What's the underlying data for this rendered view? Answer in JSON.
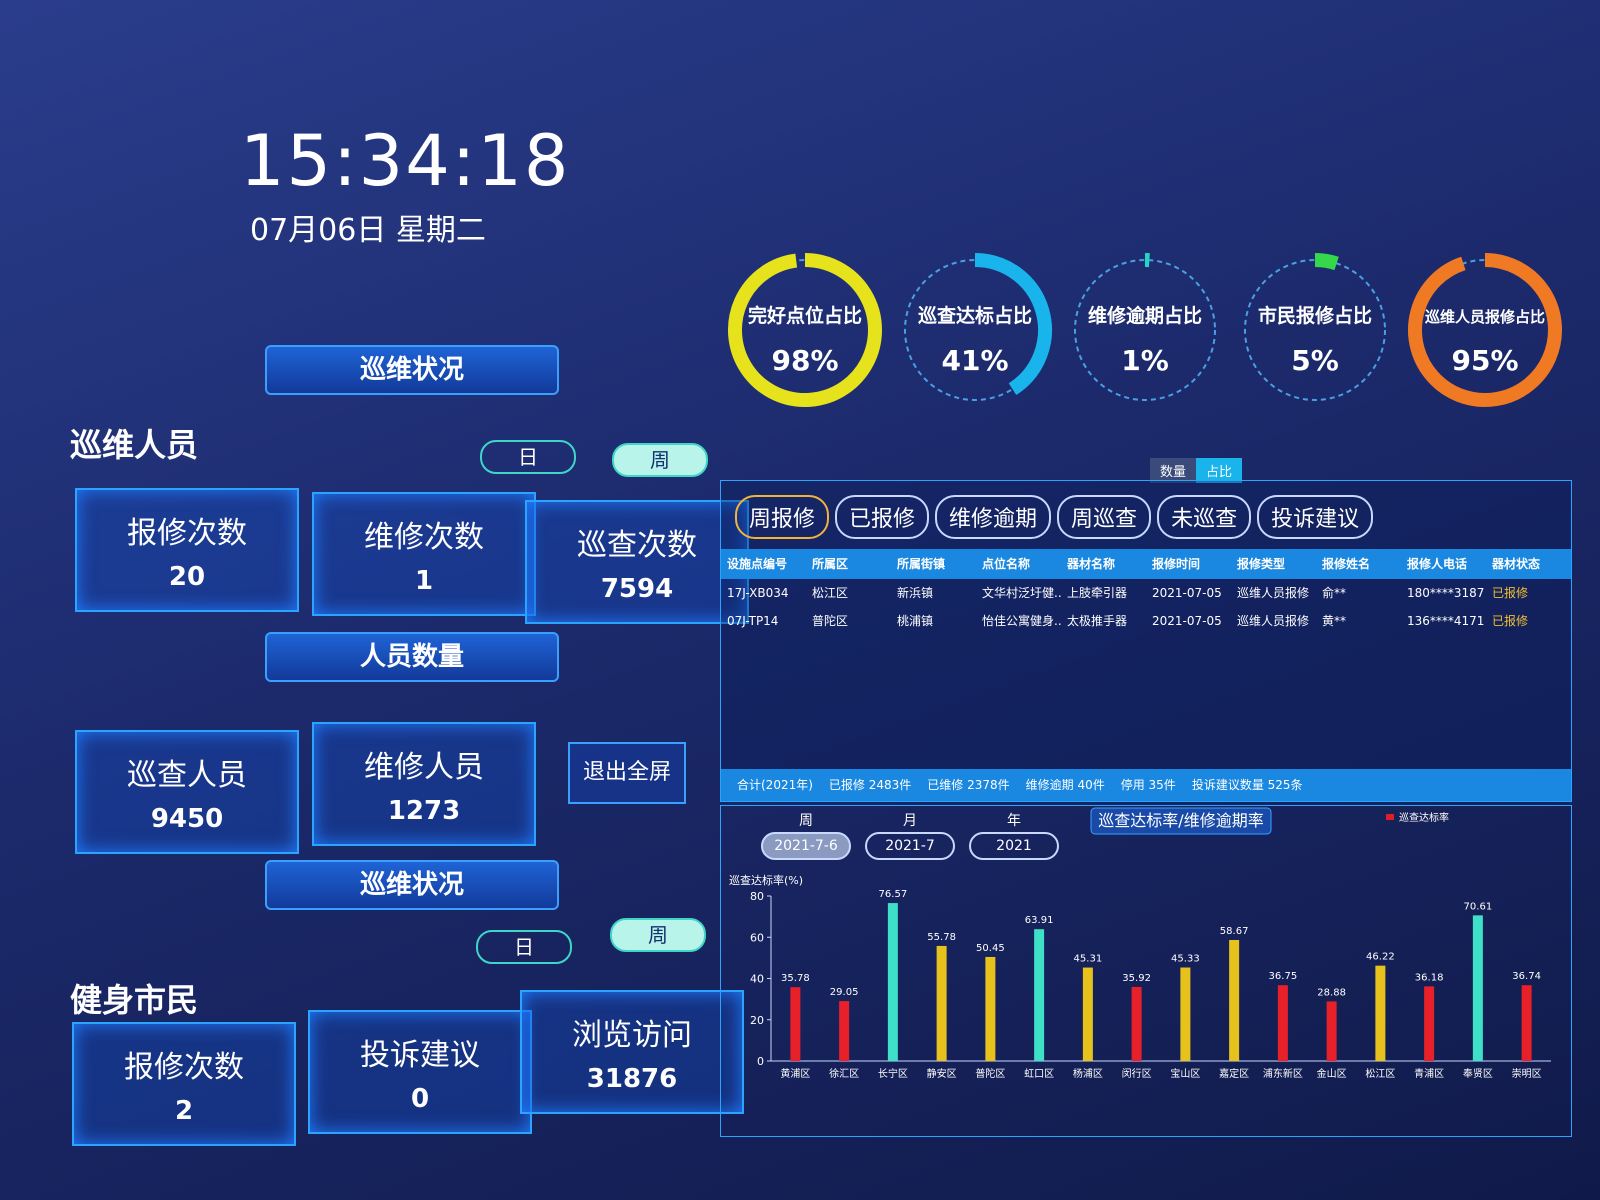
{
  "header": {
    "time": "15:34:18",
    "date": "07月06日 星期二"
  },
  "patrol": {
    "banner": "巡维状况",
    "title": "巡维人员",
    "toggle": [
      "日",
      "周"
    ],
    "cards": [
      {
        "label": "报修次数",
        "value": 20
      },
      {
        "label": "维修次数",
        "value": 1
      },
      {
        "label": "巡查次数",
        "value": 7594
      }
    ]
  },
  "staff": {
    "banner": "人员数量",
    "cards": [
      {
        "label": "巡查人员",
        "value": 9450
      },
      {
        "label": "维修人员",
        "value": 1273
      }
    ],
    "exit_button": "退出全屏"
  },
  "citizens": {
    "banner": "巡维状况",
    "title": "健身市民",
    "toggle": [
      "日",
      "周"
    ],
    "cards": [
      {
        "label": "报修次数",
        "value": 2
      },
      {
        "label": "投诉建议",
        "value": 0
      },
      {
        "label": "浏览访问",
        "value": 31876
      }
    ]
  },
  "gauges": [
    {
      "label": "完好点位占比",
      "value": 98,
      "value_label": "98%",
      "color": "#e6e21c"
    },
    {
      "label": "巡查达标占比",
      "value": 41,
      "value_label": "41%",
      "color": "#1ab4ec"
    },
    {
      "label": "维修逾期占比",
      "value": 1,
      "value_label": "1%",
      "color": "#22d6c4"
    },
    {
      "label": "市民报修占比",
      "value": 5,
      "value_label": "5%",
      "color": "#34d84a"
    },
    {
      "label": "巡维人员报修占比",
      "value": 95,
      "value_label": "95%",
      "color": "#f07a24"
    }
  ],
  "repairs": {
    "toggle": [
      "数量",
      "占比"
    ],
    "tabs": [
      "周报修",
      "已报修",
      "维修逾期",
      "周巡查",
      "未巡查",
      "投诉建议"
    ],
    "table": {
      "columns": [
        "设施点编号",
        "所属区",
        "所属街镇",
        "点位名称",
        "器材名称",
        "报修时间",
        "报修类型",
        "报修姓名",
        "报修人电话",
        "器材状态"
      ],
      "rows": [
        [
          "17J-XB034",
          "松江区",
          "新浜镇",
          "文华村泛圩健...",
          "上肢牵引器",
          "2021-07-05",
          "巡维人员报修",
          "俞**",
          "180****3187",
          "已报修"
        ],
        [
          "07J-TP14",
          "普陀区",
          "桃浦镇",
          "怡佳公寓健身...",
          "太极推手器",
          "2021-07-05",
          "巡维人员报修",
          "黄**",
          "136****4171",
          "已报修"
        ]
      ]
    },
    "summary": [
      "合计(2021年)",
      "已报修 2483件",
      "已维修 2378件",
      "维修逾期 40件",
      "停用 35件",
      "投诉建议数量 525条"
    ]
  },
  "chart": {
    "type": "bar",
    "title": "巡查达标率/维修逾期率",
    "periods": [
      {
        "label": "周",
        "value": "2021-7-6"
      },
      {
        "label": "月",
        "value": "2021-7"
      },
      {
        "label": "年",
        "value": "2021"
      }
    ],
    "y_label": "巡查达标率(%)",
    "legend": "巡查达标率",
    "legend_color": "#e02020",
    "categories": [
      "黄浦区",
      "徐汇区",
      "长宁区",
      "静安区",
      "普陀区",
      "虹口区",
      "杨浦区",
      "闵行区",
      "宝山区",
      "嘉定区",
      "浦东新区",
      "金山区",
      "松江区",
      "青浦区",
      "奉贤区",
      "崇明区"
    ],
    "values": [
      35.78,
      29.05,
      76.57,
      55.78,
      50.45,
      63.91,
      45.31,
      35.92,
      45.33,
      58.67,
      36.75,
      28.88,
      46.22,
      36.18,
      70.61,
      36.74
    ],
    "colors": [
      "#e8202a",
      "#e8202a",
      "#3ee0c8",
      "#e8c21c",
      "#e8c21c",
      "#3ee0c8",
      "#e8c21c",
      "#e8202a",
      "#e8c21c",
      "#e8c21c",
      "#e8202a",
      "#e8202a",
      "#e8c21c",
      "#e8202a",
      "#3ee0c8",
      "#e8202a"
    ],
    "ylim": [
      0,
      80
    ],
    "yticks": [
      0,
      20,
      40,
      60,
      80
    ]
  }
}
